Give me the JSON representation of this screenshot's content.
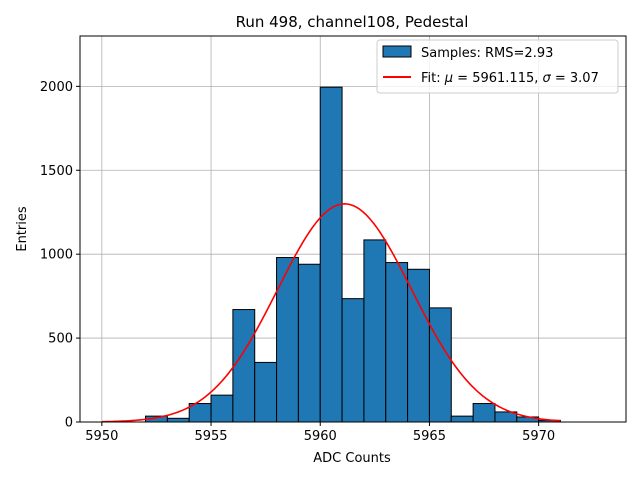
{
  "chart_data": {
    "type": "bar",
    "title": "Run 498, channel108, Pedestal",
    "xlabel": "ADC Counts",
    "ylabel": "Entries",
    "xlim": [
      5949,
      5974
    ],
    "ylim": [
      0,
      2300
    ],
    "xticks": [
      5950,
      5955,
      5960,
      5965,
      5970
    ],
    "yticks": [
      0,
      500,
      1000,
      1500,
      2000
    ],
    "grid": true,
    "legend_position": "top-right",
    "bar_color": "#1f77b4",
    "fit_color": "#ff0000",
    "histogram": {
      "name": "Samples: RMS=2.93",
      "bin_edges": [
        5952,
        5953,
        5954,
        5955,
        5956,
        5957,
        5958,
        5959,
        5960,
        5961,
        5962,
        5963,
        5964,
        5965,
        5966,
        5967,
        5968,
        5969,
        5970,
        5971
      ],
      "counts": [
        35,
        22,
        110,
        160,
        670,
        355,
        980,
        940,
        1995,
        735,
        1085,
        950,
        910,
        680,
        35,
        110,
        60,
        30,
        10
      ]
    },
    "fit": {
      "label_prefix": "Fit: ",
      "label_mu": "μ",
      "label_mid": " = 5961.115, ",
      "label_sigma": "σ",
      "label_suffix": " = 3.07",
      "mu": 5961.115,
      "sigma": 3.07,
      "amplitude": 1300,
      "x_range": [
        5950,
        5971
      ]
    }
  }
}
